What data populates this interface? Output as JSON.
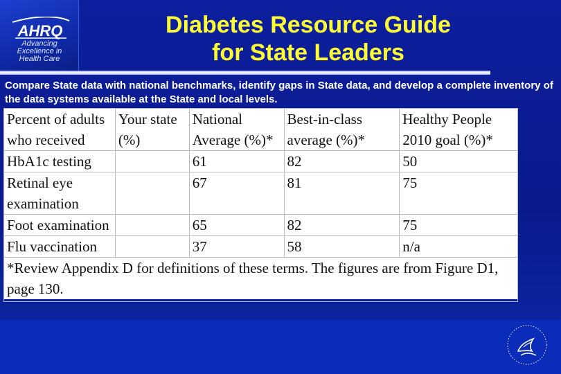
{
  "logo": {
    "name": "AHRQ",
    "tagline_1": "Advancing",
    "tagline_2": "Excellence in",
    "tagline_3": "Health Care"
  },
  "title": {
    "line1": "Diabetes Resource Guide",
    "line2": "for State Leaders"
  },
  "subtitle": "Compare State data with national benchmarks, identify gaps in State data, and develop a complete inventory of the data systems available at the State and local levels.",
  "table": {
    "headers": [
      "Percent of adults who received",
      "Your state (%)",
      "National Average (%)*",
      "Best-in-class average (%)*",
      "Healthy People 2010 goal (%)*"
    ],
    "rows": [
      [
        "HbA1c testing",
        "",
        "61",
        "82",
        "50"
      ],
      [
        "Retinal eye examination",
        "",
        "67",
        "81",
        "75"
      ],
      [
        "Foot examination",
        "",
        "65",
        "82",
        "75"
      ],
      [
        "Flu vaccination",
        "",
        "37",
        "58",
        "n/a"
      ]
    ],
    "footnote": "*Review Appendix D for definitions of these terms.  The figures are from Figure D1, page 130."
  },
  "icons": {
    "logo": "ahrq-logo-icon",
    "seal": "hhs-eagle-icon"
  },
  "colors": {
    "background": "#0a1a8c",
    "title": "#ffff33",
    "text": "#ffffff"
  }
}
